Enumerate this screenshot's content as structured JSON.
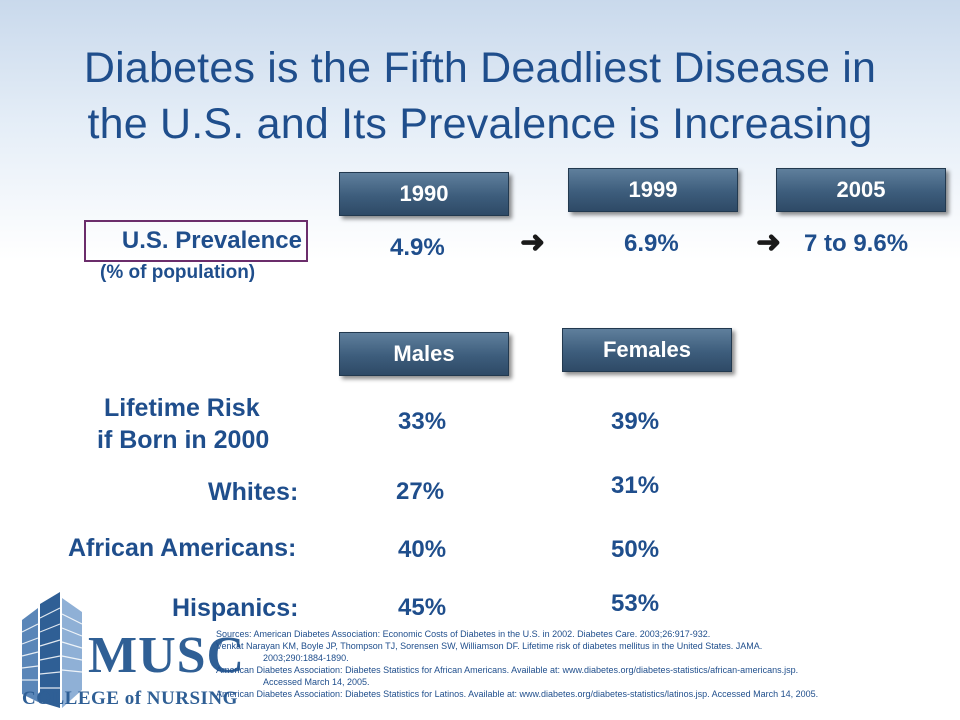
{
  "title": {
    "line1": "Diabetes is the Fifth Deadliest Disease in",
    "line2": "the U.S. and Its Prevalence is Increasing"
  },
  "prevalence": {
    "label": "U.S. Prevalence",
    "sublabel": "(% of population)",
    "years": [
      "1990",
      "1999",
      "2005"
    ],
    "values": [
      "4.9%",
      "6.9%",
      "7 to 9.6%"
    ],
    "arrow_icon": "right-arrow-icon"
  },
  "lifetime": {
    "headers": [
      "Males",
      "Females"
    ],
    "label_line1": "Lifetime Risk",
    "label_line2": "if Born in 2000",
    "overall": [
      "33%",
      "39%"
    ],
    "groups": [
      {
        "label": "Whites:",
        "male": "27%",
        "female": "31%"
      },
      {
        "label": "African Americans:",
        "male": "40%",
        "female": "50%"
      },
      {
        "label": "Hispanics:",
        "male": "45%",
        "female": "53%"
      }
    ]
  },
  "sources": [
    {
      "text": "Sources: American Diabetes Association: Economic Costs of Diabetes in the U.S. in 2002. Diabetes Care. 2003;26:917-932.",
      "cont": ""
    },
    {
      "text": "Venkat Narayan KM, Boyle JP, Thompson TJ, Sorensen SW, Williamson DF. Lifetime risk of diabetes mellitus in the United States. JAMA.",
      "cont": "2003;290:1884-1890."
    },
    {
      "text": "American Diabetes Association: Diabetes Statistics for African Americans. Available at: www.diabetes.org/diabetes-statistics/african-americans.jsp.",
      "cont": "Accessed March 14, 2005."
    },
    {
      "text": "American Diabetes Association: Diabetes Statistics for Latinos. Available at: www.diabetes.org/diabetes-statistics/latinos.jsp. Accessed March 14, 2005.",
      "cont": ""
    }
  ],
  "logo": {
    "name": "MUSC",
    "subtitle": "COLLEGE of NURSING"
  },
  "colors": {
    "title": "#1f4e8c",
    "header_bg": "#3d5d7c",
    "box_border": "#6b2d6b"
  }
}
